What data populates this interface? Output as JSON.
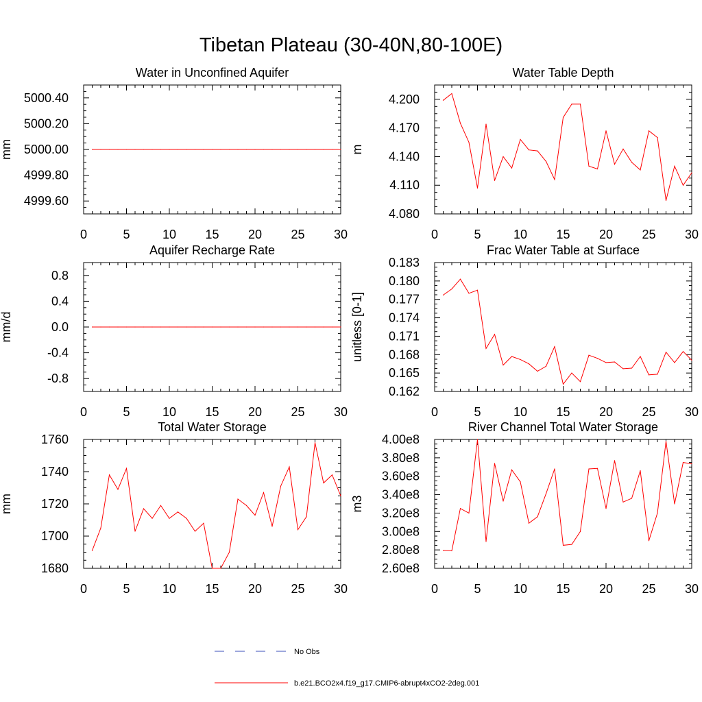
{
  "figure": {
    "title": "Tibetan Plateau (30-40N,80-100E)",
    "legend": {
      "entries": [
        {
          "label": "No Obs",
          "style": "dashed",
          "color": "#3b4fb8"
        },
        {
          "label": "b.e21.BCO2x4.f19_g17.CMIP6-abrupt4xCO2-2deg.001",
          "style": "solid",
          "color": "#ff0000"
        }
      ],
      "placement": "bottom-center"
    },
    "line_color": "#ff0000"
  },
  "chart_data": [
    {
      "type": "line",
      "title": "Water in Unconfined Aquifer",
      "ylabel": "mm",
      "xlim": [
        0,
        30
      ],
      "ylim": [
        4999.5,
        5000.5
      ],
      "xticks": [
        0,
        5,
        10,
        15,
        20,
        25,
        30
      ],
      "xtick_labels": [
        "0",
        "5",
        "10",
        "15",
        "20",
        "25",
        "30"
      ],
      "yticks": [
        4999.6,
        4999.8,
        5000.0,
        5000.2,
        5000.4
      ],
      "ytick_labels": [
        "4999.60",
        "4999.80",
        "5000.00",
        "5000.20",
        "5000.40"
      ],
      "x": [
        1,
        2,
        3,
        4,
        5,
        6,
        7,
        8,
        9,
        10,
        11,
        12,
        13,
        14,
        15,
        16,
        17,
        18,
        19,
        20,
        21,
        22,
        23,
        24,
        25,
        26,
        27,
        28,
        29,
        30
      ],
      "series": [
        {
          "values": [
            5000,
            5000,
            5000,
            5000,
            5000,
            5000,
            5000,
            5000,
            5000,
            5000,
            5000,
            5000,
            5000,
            5000,
            5000,
            5000,
            5000,
            5000,
            5000,
            5000,
            5000,
            5000,
            5000,
            5000,
            5000,
            5000,
            5000,
            5000,
            5000,
            5000
          ]
        }
      ]
    },
    {
      "type": "line",
      "title": "Water Table Depth",
      "ylabel": "m",
      "xlim": [
        0,
        30
      ],
      "ylim": [
        4.08,
        4.215
      ],
      "xticks": [
        0,
        5,
        10,
        15,
        20,
        25,
        30
      ],
      "xtick_labels": [
        "0",
        "5",
        "10",
        "15",
        "20",
        "25",
        "30"
      ],
      "yticks": [
        4.08,
        4.11,
        4.14,
        4.17,
        4.2
      ],
      "ytick_labels": [
        "4.080",
        "4.110",
        "4.140",
        "4.170",
        "4.200"
      ],
      "x": [
        1,
        2,
        3,
        4,
        5,
        6,
        7,
        8,
        9,
        10,
        11,
        12,
        13,
        14,
        15,
        16,
        17,
        18,
        19,
        20,
        21,
        22,
        23,
        24,
        25,
        26,
        27,
        28,
        29,
        30
      ],
      "series": [
        {
          "values": [
            4.199,
            4.206,
            4.175,
            4.155,
            4.107,
            4.174,
            4.115,
            4.14,
            4.128,
            4.158,
            4.147,
            4.146,
            4.135,
            4.116,
            4.181,
            4.195,
            4.195,
            4.13,
            4.127,
            4.167,
            4.132,
            4.148,
            4.134,
            4.126,
            4.167,
            4.16,
            4.094,
            4.13,
            4.11,
            4.123
          ]
        }
      ]
    },
    {
      "type": "line",
      "title": "Aquifer Recharge Rate",
      "ylabel": "mm/d",
      "xlim": [
        0,
        30
      ],
      "ylim": [
        -1.0,
        1.0
      ],
      "xticks": [
        0,
        5,
        10,
        15,
        20,
        25,
        30
      ],
      "xtick_labels": [
        "0",
        "5",
        "10",
        "15",
        "20",
        "25",
        "30"
      ],
      "yticks": [
        -0.8,
        -0.4,
        0.0,
        0.4,
        0.8
      ],
      "ytick_labels": [
        "-0.8",
        "-0.4",
        "0.0",
        "0.4",
        "0.8"
      ],
      "x": [
        1,
        2,
        3,
        4,
        5,
        6,
        7,
        8,
        9,
        10,
        11,
        12,
        13,
        14,
        15,
        16,
        17,
        18,
        19,
        20,
        21,
        22,
        23,
        24,
        25,
        26,
        27,
        28,
        29,
        30
      ],
      "series": [
        {
          "values": [
            0,
            0,
            0,
            0,
            0,
            0,
            0,
            0,
            0,
            0,
            0,
            0,
            0,
            0,
            0,
            0,
            0,
            0,
            0,
            0,
            0,
            0,
            0,
            0,
            0,
            0,
            0,
            0,
            0,
            0
          ]
        }
      ]
    },
    {
      "type": "line",
      "title": "Frac Water Table at Surface",
      "ylabel": "unitless [0-1]",
      "xlim": [
        0,
        30
      ],
      "ylim": [
        0.162,
        0.183
      ],
      "xticks": [
        0,
        5,
        10,
        15,
        20,
        25,
        30
      ],
      "xtick_labels": [
        "0",
        "5",
        "10",
        "15",
        "20",
        "25",
        "30"
      ],
      "yticks": [
        0.162,
        0.165,
        0.168,
        0.171,
        0.174,
        0.177,
        0.18,
        0.183
      ],
      "ytick_labels": [
        "0.162",
        "0.165",
        "0.168",
        "0.171",
        "0.174",
        "0.177",
        "0.180",
        "0.183"
      ],
      "x": [
        1,
        2,
        3,
        4,
        5,
        6,
        7,
        8,
        9,
        10,
        11,
        12,
        13,
        14,
        15,
        16,
        17,
        18,
        19,
        20,
        21,
        22,
        23,
        24,
        25,
        26,
        27,
        28,
        29,
        30
      ],
      "series": [
        {
          "values": [
            0.1777,
            0.1787,
            0.1803,
            0.178,
            0.1785,
            0.169,
            0.1713,
            0.1663,
            0.1677,
            0.1672,
            0.1665,
            0.1653,
            0.1661,
            0.1693,
            0.1632,
            0.165,
            0.1636,
            0.1679,
            0.1674,
            0.1667,
            0.1668,
            0.1657,
            0.1658,
            0.1677,
            0.1647,
            0.1648,
            0.1684,
            0.1667,
            0.1685,
            0.1671
          ]
        }
      ]
    },
    {
      "type": "line",
      "title": "Total Water Storage",
      "ylabel": "mm",
      "xlim": [
        0,
        30
      ],
      "ylim": [
        1680,
        1760
      ],
      "xticks": [
        0,
        5,
        10,
        15,
        20,
        25,
        30
      ],
      "xtick_labels": [
        "0",
        "5",
        "10",
        "15",
        "20",
        "25",
        "30"
      ],
      "yticks": [
        1680,
        1700,
        1720,
        1740,
        1760
      ],
      "ytick_labels": [
        "1680",
        "1700",
        "1720",
        "1740",
        "1760"
      ],
      "x": [
        1,
        2,
        3,
        4,
        5,
        6,
        7,
        8,
        9,
        10,
        11,
        12,
        13,
        14,
        15,
        16,
        17,
        18,
        19,
        20,
        21,
        22,
        23,
        24,
        25,
        26,
        27,
        28,
        29,
        30
      ],
      "series": [
        {
          "values": [
            1691,
            1705,
            1738,
            1729,
            1742,
            1703,
            1717,
            1711,
            1719,
            1711,
            1715,
            1711,
            1703,
            1708,
            1680,
            1680,
            1690,
            1723,
            1719,
            1713,
            1727,
            1706,
            1731,
            1743,
            1704,
            1712,
            1758,
            1733,
            1738,
            1725
          ]
        }
      ]
    },
    {
      "type": "line",
      "title": "River Channel Total Water Storage",
      "ylabel": "m3",
      "xlim": [
        0,
        30
      ],
      "ylim": [
        260000000,
        400000000
      ],
      "xticks": [
        0,
        5,
        10,
        15,
        20,
        25,
        30
      ],
      "xtick_labels": [
        "0",
        "5",
        "10",
        "15",
        "20",
        "25",
        "30"
      ],
      "yticks": [
        260000000,
        280000000,
        300000000,
        320000000,
        340000000,
        360000000,
        380000000,
        400000000
      ],
      "ytick_labels": [
        "2.60e8",
        "2.80e8",
        "3.00e8",
        "3.20e8",
        "3.40e8",
        "3.60e8",
        "3.80e8",
        "4.00e8"
      ],
      "x": [
        1,
        2,
        3,
        4,
        5,
        6,
        7,
        8,
        9,
        10,
        11,
        12,
        13,
        14,
        15,
        16,
        17,
        18,
        19,
        20,
        21,
        22,
        23,
        24,
        25,
        26,
        27,
        28,
        29,
        30
      ],
      "series": [
        {
          "values": [
            279500000,
            279000000,
            325000000,
            320000000,
            400000000,
            289000000,
            374000000,
            333000000,
            367000000,
            354000000,
            309000000,
            316000000,
            341000000,
            368000000,
            285000000,
            286000000,
            300000000,
            368000000,
            368500000,
            325000000,
            377000000,
            332000000,
            336000000,
            366000000,
            290000000,
            320000000,
            398000000,
            330000000,
            375000000,
            373500000
          ]
        }
      ]
    }
  ]
}
